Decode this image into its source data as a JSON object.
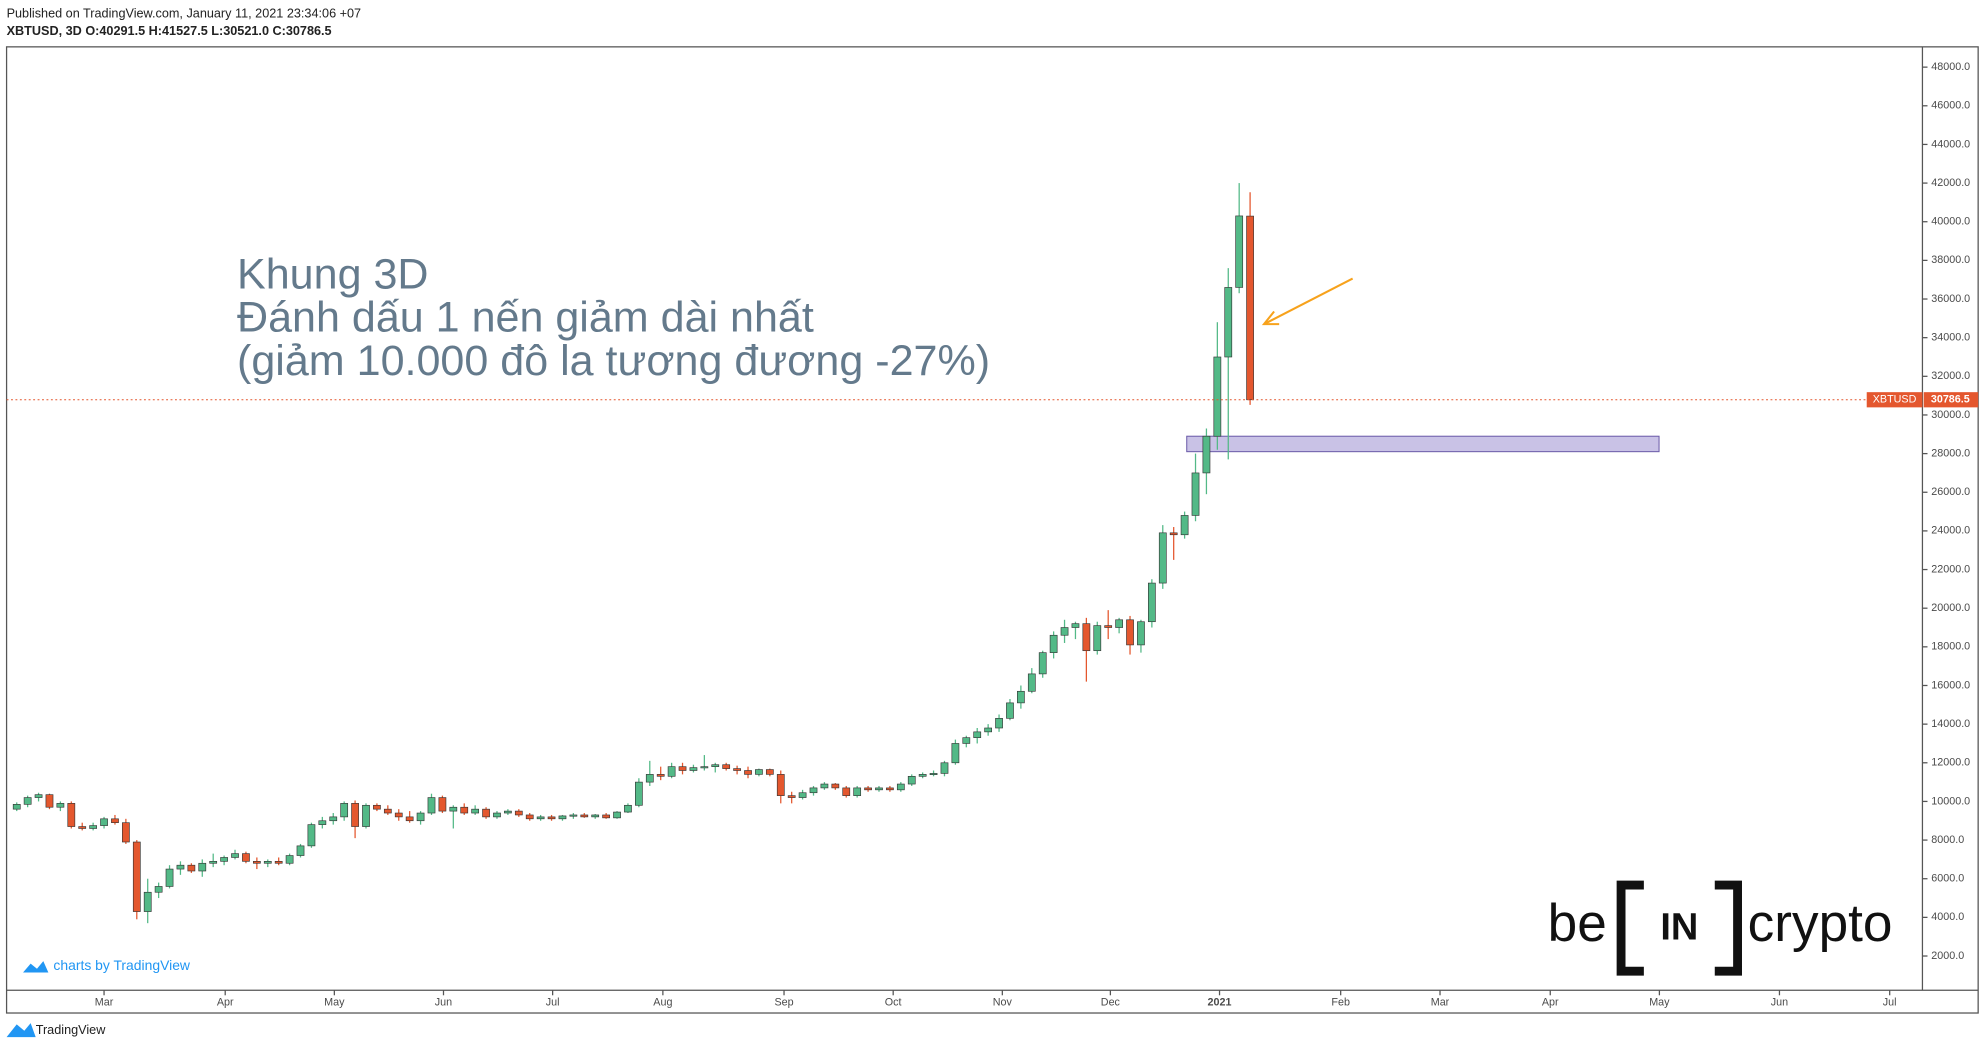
{
  "chart_data": {
    "type": "candlestick",
    "published": "Published on TradingView.com, January 11, 2021 23:34:06 +07",
    "legend_text": "XBTUSD, 3D O:40291.5 H:41527.5 L:30521.0 C:30786.5",
    "annotation": [
      "Khung 3D",
      "Đánh dấu 1 nến giảm dài nhất",
      "(giảm 10.000 đô la tương đương -27%)"
    ],
    "price_tag": "XBTUSD",
    "credit": "charts by TradingView",
    "footer": "TradingView",
    "logo": [
      "be",
      "IN",
      "crypto"
    ],
    "up_color": "#53b987",
    "down_color": "#e4572e",
    "zone": {
      "ylim": [
        28100,
        28900
      ],
      "color": "#c9c2e6"
    },
    "xlim": [
      -0.93,
      174.6
    ],
    "ylim": [
      230,
      49050
    ],
    "xticks": [
      {
        "value": 8.0,
        "label": "Mar"
      },
      {
        "value": 19.1,
        "label": "Apr"
      },
      {
        "value": 29.1,
        "label": "May"
      },
      {
        "value": 39.1,
        "label": "Jun"
      },
      {
        "value": 49.1,
        "label": "Jul"
      },
      {
        "value": 59.2,
        "label": "Aug"
      },
      {
        "value": 70.3,
        "label": "Sep"
      },
      {
        "value": 80.3,
        "label": "Oct"
      },
      {
        "value": 90.3,
        "label": "Nov"
      },
      {
        "value": 100.2,
        "label": "Dec"
      },
      {
        "value": 110.2,
        "label": "2021"
      },
      {
        "value": 121.3,
        "label": "Feb"
      },
      {
        "value": 130.4,
        "label": "Mar"
      },
      {
        "value": 140.5,
        "label": "Apr"
      },
      {
        "value": 150.5,
        "label": "May"
      },
      {
        "value": 161.5,
        "label": "Jun"
      },
      {
        "value": 171.6,
        "label": "Jul"
      }
    ],
    "yticks": [
      {
        "value": 2000,
        "label": "2000.0"
      },
      {
        "value": 4000,
        "label": "4000.0"
      },
      {
        "value": 6000,
        "label": "6000.0"
      },
      {
        "value": 8000,
        "label": "8000.0"
      },
      {
        "value": 10000,
        "label": "10000.0"
      },
      {
        "value": 12000,
        "label": "12000.0"
      },
      {
        "value": 14000,
        "label": "14000.0"
      },
      {
        "value": 16000,
        "label": "16000.0"
      },
      {
        "value": 18000,
        "label": "18000.0"
      },
      {
        "value": 20000,
        "label": "20000.0"
      },
      {
        "value": 22000,
        "label": "22000.0"
      },
      {
        "value": 24000,
        "label": "24000.0"
      },
      {
        "value": 26000,
        "label": "26000.0"
      },
      {
        "value": 28000,
        "label": "28000.0"
      },
      {
        "value": 30000,
        "label": "30000.0"
      },
      {
        "value": 32000,
        "label": "32000.0"
      },
      {
        "value": 34000,
        "label": "34000.0"
      },
      {
        "value": 36000,
        "label": "36000.0"
      },
      {
        "value": 38000,
        "label": "38000.0"
      },
      {
        "value": 40000,
        "label": "40000.0"
      },
      {
        "value": 42000,
        "label": "42000.0"
      },
      {
        "value": 44000,
        "label": "44000.0"
      },
      {
        "value": 46000,
        "label": "46000.0"
      },
      {
        "value": 48000,
        "label": "48000.0"
      }
    ],
    "open": [
      9600,
      9850,
      10200,
      10350,
      9700,
      9900,
      8700,
      8600,
      8750,
      9100,
      8900,
      7900,
      4300,
      5300,
      5600,
      6500,
      6700,
      6400,
      6800,
      6900,
      7100,
      7300,
      6900,
      6800,
      6900,
      6800,
      7200,
      7700,
      8800,
      9000,
      9200,
      9900,
      8700,
      9800,
      9600,
      9400,
      9200,
      9000,
      9400,
      10200,
      9500,
      9700,
      9400,
      9600,
      9200,
      9400,
      9500,
      9300,
      9100,
      9200,
      9100,
      9250,
      9300,
      9200,
      9300,
      9150,
      9450,
      9800,
      11000,
      11400,
      11300,
      11800,
      11600,
      11750,
      11800,
      11900,
      11700,
      11600,
      11400,
      11650,
      11400,
      10300,
      10200,
      10450,
      10700,
      10900,
      10700,
      10300,
      10700,
      10600,
      10700,
      10600,
      10900,
      11300,
      11400,
      11450,
      12000,
      13000,
      13300,
      13600,
      13800,
      14300,
      15100,
      15700,
      16600,
      17700,
      18600,
      19000,
      19200,
      17800,
      19100,
      19000,
      19400,
      18100,
      19300,
      21300,
      23900,
      23800,
      24800,
      27000,
      28900,
      33000,
      36600,
      40291.5
    ],
    "high": [
      9950,
      10300,
      10450,
      10400,
      10000,
      10000,
      8900,
      8900,
      9200,
      9300,
      9100,
      8000,
      6000,
      5800,
      6700,
      6900,
      6800,
      7000,
      7300,
      7200,
      7500,
      7400,
      7100,
      7000,
      7100,
      7300,
      7800,
      8900,
      9200,
      9400,
      10000,
      10050,
      9900,
      9900,
      9800,
      9600,
      9500,
      9500,
      10400,
      10300,
      9800,
      9900,
      9800,
      9700,
      9500,
      9600,
      9600,
      9400,
      9300,
      9300,
      9300,
      9400,
      9400,
      9350,
      9400,
      9500,
      9900,
      11200,
      12100,
      11800,
      12000,
      12000,
      11900,
      12400,
      12000,
      12000,
      11850,
      11800,
      11700,
      11700,
      11600,
      10500,
      10600,
      10800,
      11000,
      10950,
      10800,
      10800,
      10800,
      10800,
      10800,
      11000,
      11400,
      11500,
      11600,
      12100,
      13200,
      13400,
      13800,
      14000,
      14500,
      15300,
      16000,
      16900,
      17800,
      18800,
      19400,
      19300,
      19500,
      19300,
      19900,
      19500,
      19600,
      19400,
      21500,
      24300,
      24200,
      25000,
      28000,
      29300,
      34800,
      37600,
      42000,
      41527.5
    ],
    "low": [
      9500,
      9700,
      10000,
      9600,
      9500,
      8600,
      8500,
      8500,
      8600,
      8800,
      7800,
      3900,
      3700,
      5000,
      5500,
      6200,
      6300,
      6100,
      6600,
      6700,
      7000,
      6800,
      6500,
      6600,
      6700,
      6700,
      7100,
      7600,
      8600,
      8800,
      9000,
      8100,
      8600,
      9500,
      9300,
      9000,
      8900,
      8800,
      9300,
      9400,
      8600,
      9300,
      9300,
      9100,
      9100,
      9300,
      9200,
      9000,
      9000,
      9000,
      9000,
      9100,
      9150,
      9100,
      9100,
      9100,
      9400,
      9700,
      10800,
      11100,
      11200,
      11400,
      11500,
      11600,
      11500,
      11600,
      11400,
      11200,
      11300,
      11300,
      9900,
      9900,
      10100,
      10300,
      10600,
      10600,
      10200,
      10200,
      10500,
      10500,
      10500,
      10500,
      10800,
      11200,
      11300,
      11300,
      11900,
      12800,
      13000,
      13400,
      13600,
      14200,
      14800,
      15600,
      16400,
      17400,
      18200,
      18400,
      16200,
      17600,
      18400,
      18700,
      17600,
      17700,
      19000,
      21000,
      22500,
      23600,
      24500,
      25900,
      28200,
      27700,
      36300,
      30521
    ],
    "close": [
      9850,
      10200,
      10350,
      9700,
      9900,
      8700,
      8600,
      8750,
      9100,
      8900,
      7900,
      4300,
      5300,
      5600,
      6500,
      6700,
      6400,
      6800,
      6900,
      7100,
      7300,
      6900,
      6800,
      6900,
      6800,
      7200,
      7700,
      8800,
      9000,
      9200,
      9900,
      8700,
      9800,
      9600,
      9400,
      9200,
      9000,
      9400,
      10200,
      9500,
      9700,
      9400,
      9600,
      9200,
      9400,
      9500,
      9300,
      9100,
      9200,
      9100,
      9250,
      9300,
      9200,
      9300,
      9150,
      9450,
      9800,
      11000,
      11400,
      11300,
      11800,
      11600,
      11750,
      11800,
      11900,
      11700,
      11600,
      11400,
      11650,
      11400,
      10300,
      10200,
      10450,
      10700,
      10900,
      10700,
      10300,
      10700,
      10600,
      10700,
      10600,
      10900,
      11300,
      11400,
      11450,
      12000,
      13000,
      13300,
      13600,
      13800,
      14300,
      15100,
      15700,
      16600,
      17700,
      18600,
      19000,
      19200,
      17800,
      19100,
      19000,
      19400,
      18100,
      19300,
      21300,
      23900,
      23800,
      24800,
      27000,
      28900,
      33000,
      36600,
      40300,
      30786.5
    ]
  }
}
